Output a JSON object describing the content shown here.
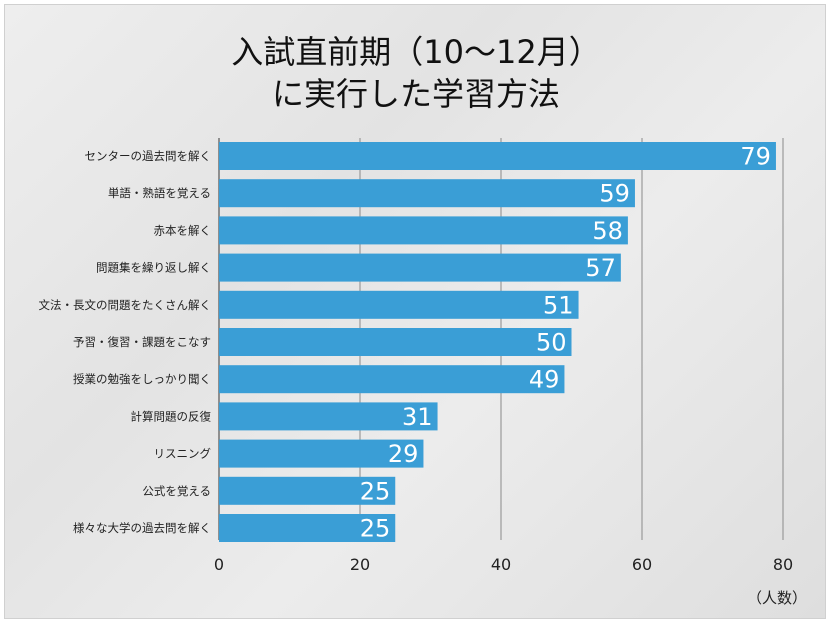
{
  "chart_data": {
    "type": "bar",
    "orientation": "horizontal",
    "title_lines": [
      "入試直前期（10〜12月）",
      "に実行した学習方法"
    ],
    "unit_label": "（人数）",
    "categories": [
      "センターの過去問を解く",
      "単語・熟語を覚える",
      "赤本を解く",
      "問題集を繰り返し解く",
      "文法・長文の問題をたくさん解く",
      "予習・復習・課題をこなす",
      "授業の勉強をしっかり聞く",
      "計算問題の反復",
      "リスニング",
      "公式を覚える",
      "様々な大学の過去問を解く"
    ],
    "values": [
      79,
      59,
      58,
      57,
      51,
      50,
      49,
      31,
      29,
      25,
      25
    ],
    "xlim": [
      0,
      80
    ],
    "xticks": [
      0,
      20,
      40,
      60,
      80
    ],
    "grid": true,
    "bar_color": "#3a9ed6"
  }
}
